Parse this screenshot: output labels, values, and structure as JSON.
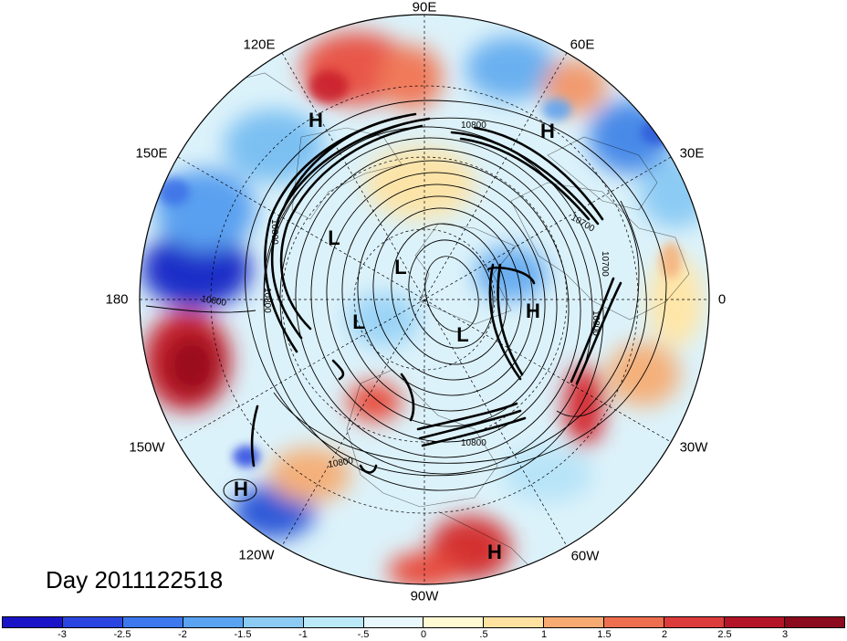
{
  "title": "Day 2011122518",
  "longitude_labels": [
    "90E",
    "60E",
    "30E",
    "0",
    "30W",
    "60W",
    "90W",
    "120W",
    "150W",
    "180",
    "150E",
    "120E"
  ],
  "contour_labels": [
    "10800",
    "10800",
    "10700",
    "10700",
    "10800",
    "10800",
    "10800",
    "10800",
    "10800"
  ],
  "pressure_centers": [
    {
      "label": "H"
    },
    {
      "label": "H"
    },
    {
      "label": "H"
    },
    {
      "label": "H"
    },
    {
      "label": "H"
    },
    {
      "label": "L"
    },
    {
      "label": "L"
    },
    {
      "label": "L"
    },
    {
      "label": "L"
    }
  ],
  "colorbar": {
    "ticks": [
      "-3",
      "-2.5",
      "-2",
      "-1.5",
      "-1",
      "-.5",
      "0",
      ".5",
      "1",
      "1.5",
      "2",
      "2.5",
      "3"
    ],
    "colors": [
      "#1a14c8",
      "#2b46e0",
      "#3e78ee",
      "#5aa2f2",
      "#8ccbf4",
      "#bce9f8",
      "#e8f8fc",
      "#fffad2",
      "#ffe1a0",
      "#f8aa73",
      "#ee6e50",
      "#dc3c3c",
      "#b41428",
      "#8c0a1e"
    ]
  }
}
